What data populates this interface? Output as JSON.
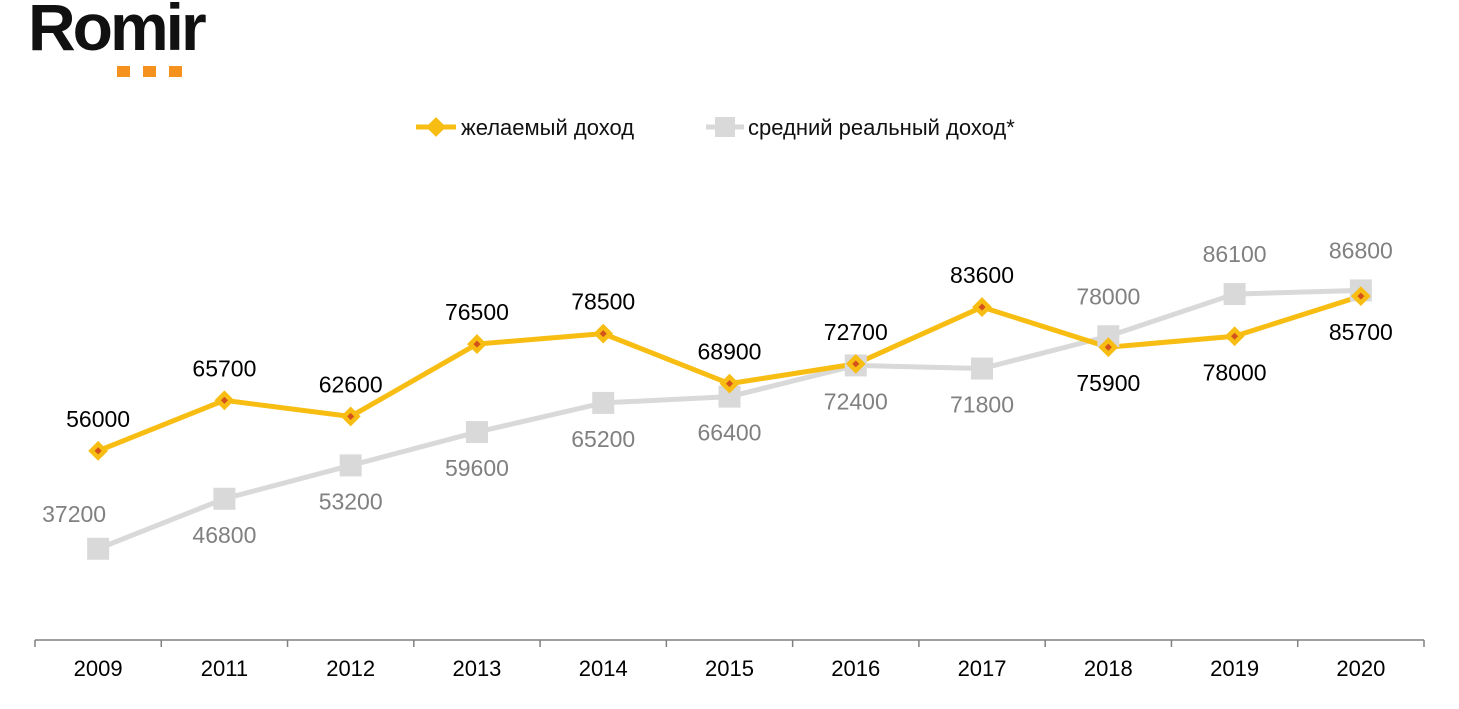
{
  "brand": {
    "logo_text": "Romir",
    "accent": "#f5921e"
  },
  "chart_data": {
    "type": "line",
    "title": "",
    "xlabel": "",
    "ylabel": "",
    "ylim": [
      25000,
      95000
    ],
    "categories": [
      "2009",
      "2011",
      "2012",
      "2013",
      "2014",
      "2015",
      "2016",
      "2017",
      "2018",
      "2019",
      "2020"
    ],
    "series": [
      {
        "name": "желаемый доход",
        "color": "#f7bd12",
        "marker_color": "#f7bd12",
        "marker_center": "#d4521c",
        "label_color": "#000000",
        "marker": "diamond",
        "values": [
          56000,
          65700,
          62600,
          76500,
          78500,
          68900,
          72700,
          83600,
          75900,
          78000,
          85700
        ],
        "label_position": [
          "above",
          "above",
          "above",
          "above",
          "above",
          "above",
          "above",
          "above",
          "below",
          "below",
          "below"
        ]
      },
      {
        "name": "средний реальный доход*",
        "color": "#d9d9d9",
        "marker_color": "#d9d9d9",
        "label_color": "#808080",
        "marker": "square",
        "values": [
          37200,
          46800,
          53200,
          59600,
          65200,
          66400,
          72400,
          71800,
          78000,
          86100,
          86800
        ],
        "label_position": [
          "above-left",
          "below",
          "below",
          "below",
          "below",
          "below",
          "below",
          "below",
          "above",
          "above",
          "above"
        ]
      }
    ],
    "legend_position": "top-center",
    "grid": false
  }
}
